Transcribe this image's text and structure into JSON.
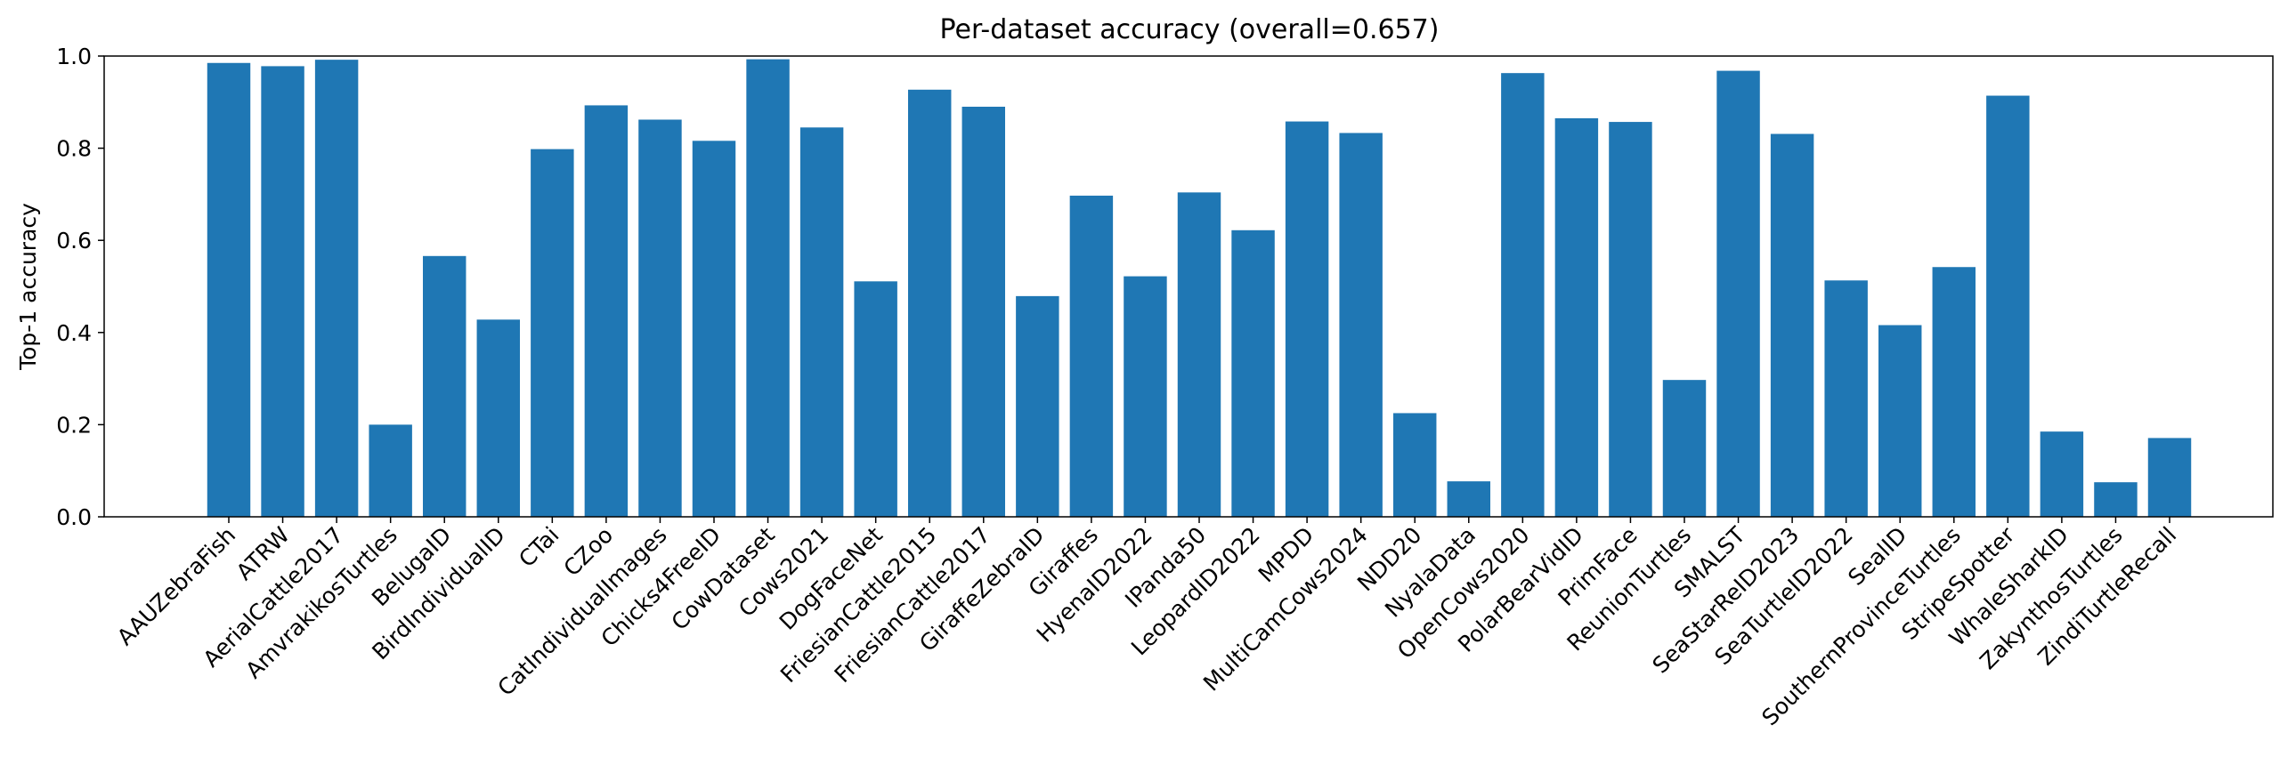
{
  "chart_data": {
    "type": "bar",
    "title": "Per-dataset accuracy (overall=0.657)",
    "xlabel": "",
    "ylabel": "Top-1 accuracy",
    "ylim": [
      0,
      1.0
    ],
    "yticks": [
      "0.0",
      "0.2",
      "0.4",
      "0.6",
      "0.8",
      "1.0"
    ],
    "grid": false,
    "bar_color": "#1f77b4",
    "categories": [
      "AAUZebraFish",
      "ATRW",
      "AerialCattle2017",
      "AmvrakikosTurtles",
      "BelugaID",
      "BirdIndividualID",
      "CTai",
      "CZoo",
      "CatIndividualImages",
      "Chicks4FreeID",
      "CowDataset",
      "Cows2021",
      "DogFaceNet",
      "FriesianCattle2015",
      "FriesianCattle2017",
      "GiraffeZebraID",
      "Giraffes",
      "HyenaID2022",
      "IPanda50",
      "LeopardID2022",
      "MPDD",
      "MultiCamCows2024",
      "NDD20",
      "NyalaData",
      "OpenCows2020",
      "PolarBearVidID",
      "PrimFace",
      "ReunionTurtles",
      "SMALST",
      "SeaStarReID2023",
      "SeaTurtleID2022",
      "SealID",
      "SouthernProvinceTurtles",
      "StripeSpotter",
      "WhaleSharkID",
      "ZakynthosTurtles",
      "ZindiTurtleRecall"
    ],
    "values": [
      0.985,
      0.978,
      0.992,
      0.2,
      0.566,
      0.428,
      0.798,
      0.893,
      0.862,
      0.816,
      0.993,
      0.845,
      0.511,
      0.927,
      0.89,
      0.479,
      0.697,
      0.522,
      0.704,
      0.622,
      0.858,
      0.833,
      0.225,
      0.077,
      0.963,
      0.865,
      0.857,
      0.297,
      0.968,
      0.831,
      0.513,
      0.416,
      0.542,
      0.914,
      0.185,
      0.075,
      0.171
    ]
  }
}
